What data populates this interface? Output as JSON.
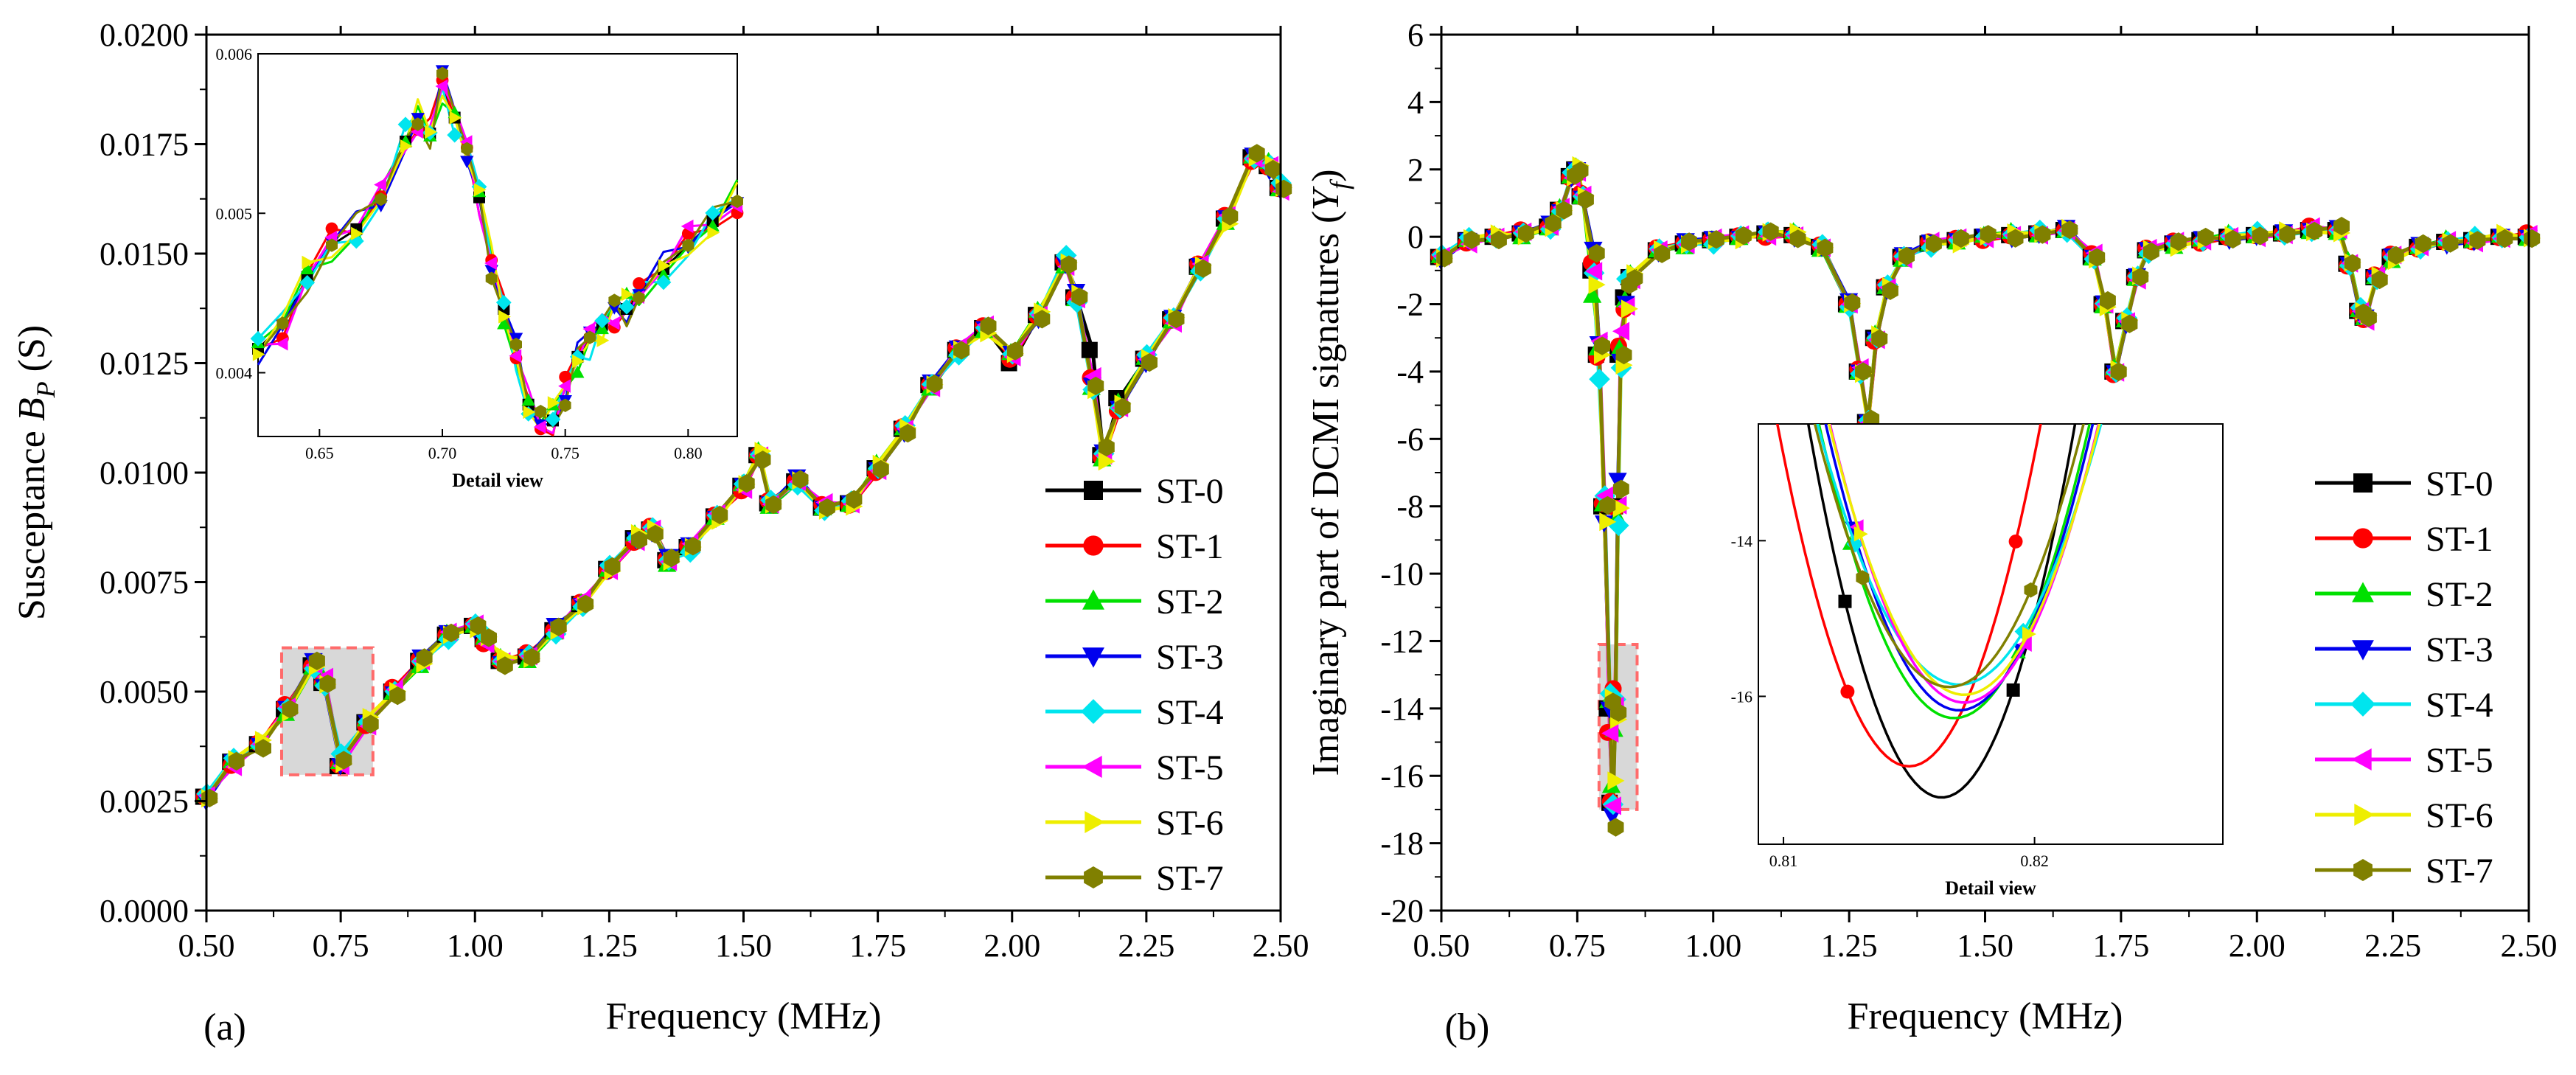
{
  "chart_data": [
    {
      "type": "line",
      "panel_label": "(a)",
      "xlabel": "Frequency (MHz)",
      "ylabel_prefix": "Susceptance ",
      "ylabel_var": "B",
      "ylabel_sub": "P",
      "ylabel_suffix": " (S)",
      "xlim": [
        0.5,
        2.5
      ],
      "ylim": [
        0.0,
        0.02
      ],
      "xticks": [
        "0.50",
        "0.75",
        "1.00",
        "1.25",
        "1.50",
        "1.75",
        "2.00",
        "2.25",
        "2.50"
      ],
      "yticks": [
        "0.0000",
        "0.0025",
        "0.0050",
        "0.0075",
        "0.0100",
        "0.0125",
        "0.0150",
        "0.0175",
        "0.0200"
      ],
      "legend_position": "bottom-right",
      "x": [
        0.5,
        0.55,
        0.6,
        0.65,
        0.7,
        0.72,
        0.75,
        0.8,
        0.85,
        0.9,
        0.95,
        1.0,
        1.02,
        1.05,
        1.1,
        1.15,
        1.2,
        1.25,
        1.3,
        1.33,
        1.36,
        1.4,
        1.45,
        1.5,
        1.53,
        1.55,
        1.6,
        1.65,
        1.7,
        1.75,
        1.8,
        1.85,
        1.9,
        1.95,
        2.0,
        2.05,
        2.1,
        2.12,
        2.15,
        2.17,
        2.2,
        2.25,
        2.3,
        2.35,
        2.4,
        2.45,
        2.48,
        2.5
      ],
      "base": [
        0.0026,
        0.0034,
        0.0038,
        0.0046,
        0.0056,
        0.0052,
        0.0034,
        0.0043,
        0.005,
        0.0057,
        0.0063,
        0.0065,
        0.0062,
        0.0057,
        0.0058,
        0.0064,
        0.007,
        0.0078,
        0.0085,
        0.0087,
        0.008,
        0.0083,
        0.009,
        0.0097,
        0.0104,
        0.0093,
        0.0098,
        0.0092,
        0.0093,
        0.0101,
        0.011,
        0.012,
        0.0128,
        0.0133,
        0.0127,
        0.0136,
        0.0148,
        0.014,
        0.012,
        0.0104,
        0.0115,
        0.0126,
        0.0135,
        0.0147,
        0.0158,
        0.0172,
        0.017,
        0.0165
      ],
      "series": [
        {
          "name": "ST-0",
          "color": "#000000",
          "marker": "square",
          "offsets": [
            0,
            0,
            0,
            0,
            0,
            0,
            -0.0001,
            0,
            0,
            0,
            0,
            0,
            0,
            0,
            0,
            0,
            0,
            0,
            0,
            0,
            0,
            0,
            0,
            0,
            0,
            0,
            0,
            0,
            0,
            0,
            0,
            0,
            0,
            0,
            -0.0002,
            0,
            0,
            0,
            0.0008,
            0,
            0.0002,
            0,
            0,
            0,
            0,
            0,
            0,
            0
          ]
        },
        {
          "name": "ST-1",
          "color": "#ff0000",
          "marker": "circle"
        },
        {
          "name": "ST-2",
          "color": "#00e000",
          "marker": "triangle-up"
        },
        {
          "name": "ST-3",
          "color": "#0000ee",
          "marker": "triangle-down"
        },
        {
          "name": "ST-4",
          "color": "#00e5ee",
          "marker": "diamond"
        },
        {
          "name": "ST-5",
          "color": "#ff00ff",
          "marker": "triangle-left"
        },
        {
          "name": "ST-6",
          "color": "#eeee00",
          "marker": "triangle-right"
        },
        {
          "name": "ST-7",
          "color": "#808000",
          "marker": "hexagon"
        }
      ],
      "highlight_box": {
        "x_range": [
          0.64,
          0.81
        ],
        "y_range": [
          0.0031,
          0.006
        ]
      },
      "inset": {
        "title": "Detail view",
        "xlim": [
          0.625,
          0.82
        ],
        "ylim": [
          0.0036,
          0.006
        ],
        "xticks": [
          "0.65",
          "0.70",
          "0.75",
          "0.80"
        ],
        "yticks": [
          "0.004",
          "0.005",
          "0.006"
        ],
        "x": [
          0.625,
          0.635,
          0.645,
          0.655,
          0.665,
          0.675,
          0.685,
          0.69,
          0.695,
          0.7,
          0.705,
          0.71,
          0.715,
          0.72,
          0.725,
          0.73,
          0.735,
          0.74,
          0.745,
          0.75,
          0.755,
          0.76,
          0.765,
          0.77,
          0.775,
          0.78,
          0.79,
          0.8,
          0.81,
          0.82
        ],
        "base": [
          0.00415,
          0.0043,
          0.0046,
          0.0048,
          0.0049,
          0.0051,
          0.00545,
          0.0056,
          0.0055,
          0.0058,
          0.0056,
          0.0054,
          0.0051,
          0.0047,
          0.0044,
          0.0041,
          0.0038,
          0.0037,
          0.0037,
          0.0039,
          0.0041,
          0.0042,
          0.0043,
          0.0044,
          0.0044,
          0.0045,
          0.00465,
          0.0048,
          0.00495,
          0.0051
        ]
      }
    },
    {
      "type": "line",
      "panel_label": "(b)",
      "xlabel": "Frequency (MHz)",
      "ylabel_prefix": "Imaginary part of DCMI signatures (",
      "ylabel_var": "Y",
      "ylabel_sub": "f",
      "ylabel_suffix": ")",
      "xlim": [
        0.5,
        2.5
      ],
      "ylim": [
        -20,
        6
      ],
      "xticks": [
        "0.50",
        "0.75",
        "1.00",
        "1.25",
        "1.50",
        "1.75",
        "2.00",
        "2.25",
        "2.50"
      ],
      "yticks": [
        "-20",
        "-18",
        "-16",
        "-14",
        "-12",
        "-10",
        "-8",
        "-6",
        "-4",
        "-2",
        "0",
        "2",
        "4",
        "6"
      ],
      "legend_position": "bottom-right",
      "x": [
        0.5,
        0.55,
        0.6,
        0.65,
        0.7,
        0.72,
        0.74,
        0.75,
        0.76,
        0.78,
        0.79,
        0.8,
        0.81,
        0.815,
        0.82,
        0.825,
        0.83,
        0.84,
        0.85,
        0.9,
        0.95,
        1.0,
        1.05,
        1.1,
        1.15,
        1.2,
        1.25,
        1.27,
        1.285,
        1.3,
        1.32,
        1.35,
        1.4,
        1.45,
        1.5,
        1.55,
        1.6,
        1.65,
        1.7,
        1.72,
        1.74,
        1.76,
        1.78,
        1.8,
        1.85,
        1.9,
        1.95,
        2.0,
        2.05,
        2.1,
        2.15,
        2.17,
        2.19,
        2.2,
        2.22,
        2.25,
        2.3,
        2.35,
        2.4,
        2.45,
        2.5
      ],
      "base": [
        -0.6,
        -0.1,
        0.0,
        0.1,
        0.3,
        0.8,
        1.8,
        2.0,
        1.2,
        -1.0,
        -3.5,
        -8.0,
        -14.0,
        -16.8,
        -14.0,
        -8.0,
        -3.5,
        -1.8,
        -1.2,
        -0.4,
        -0.2,
        -0.1,
        0.0,
        0.1,
        0.05,
        -0.3,
        -2.0,
        -4.0,
        -5.5,
        -3.0,
        -1.5,
        -0.6,
        -0.2,
        -0.1,
        0.0,
        0.05,
        0.1,
        0.2,
        -0.6,
        -2.0,
        -4.0,
        -2.5,
        -1.2,
        -0.4,
        -0.2,
        -0.1,
        0.0,
        0.05,
        0.1,
        0.2,
        0.2,
        -0.8,
        -2.2,
        -2.4,
        -1.2,
        -0.6,
        -0.3,
        -0.15,
        -0.1,
        0.0,
        0.0
      ],
      "series": [
        {
          "name": "ST-0",
          "color": "#000000",
          "marker": "square"
        },
        {
          "name": "ST-1",
          "color": "#ff0000",
          "marker": "circle"
        },
        {
          "name": "ST-2",
          "color": "#00e000",
          "marker": "triangle-up"
        },
        {
          "name": "ST-3",
          "color": "#0000ee",
          "marker": "triangle-down"
        },
        {
          "name": "ST-4",
          "color": "#00e5ee",
          "marker": "diamond"
        },
        {
          "name": "ST-5",
          "color": "#ff00ff",
          "marker": "triangle-left"
        },
        {
          "name": "ST-6",
          "color": "#eeee00",
          "marker": "triangle-right"
        },
        {
          "name": "ST-7",
          "color": "#808000",
          "marker": "hexagon"
        }
      ],
      "highlight_box": {
        "x_range": [
          0.79,
          0.86
        ],
        "y_range": [
          -17.0,
          -12.1
        ]
      },
      "inset": {
        "title": "Detail view",
        "xlim": [
          0.809,
          0.8275
        ],
        "ylim": [
          -17.9,
          -12.5
        ],
        "xticks": [
          "0.81",
          "0.82"
        ],
        "yticks": [
          "-14",
          "-16"
        ],
        "curves": [
          {
            "name": "ST-0",
            "xmin": 0.8163,
            "ymin": -17.3,
            "k": 0.17
          },
          {
            "name": "ST-1",
            "xmin": 0.815,
            "ymin": -16.9,
            "k": 0.16
          },
          {
            "name": "ST-2",
            "xmin": 0.8168,
            "ymin": -16.28,
            "k": 0.13
          },
          {
            "name": "ST-3",
            "xmin": 0.817,
            "ymin": -16.18,
            "k": 0.13
          },
          {
            "name": "ST-4",
            "xmin": 0.817,
            "ymin": -15.85,
            "k": 0.105
          },
          {
            "name": "ST-5",
            "xmin": 0.8172,
            "ymin": -16.08,
            "k": 0.125
          },
          {
            "name": "ST-6",
            "xmin": 0.8172,
            "ymin": -15.98,
            "k": 0.12
          },
          {
            "name": "ST-7",
            "xmin": 0.8166,
            "ymin": -15.88,
            "k": 0.118
          }
        ]
      }
    }
  ]
}
